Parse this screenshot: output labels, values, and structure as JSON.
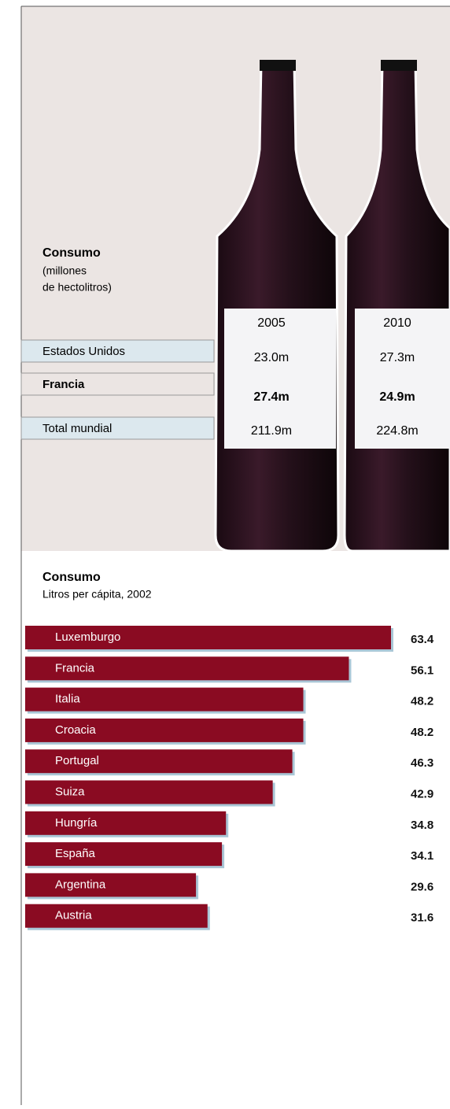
{
  "table": {
    "title": "Consumo",
    "note_lines": [
      "(millones",
      "de hectolitros)"
    ],
    "columns": [
      "2005",
      "2010"
    ],
    "rows": [
      {
        "label": "Estados Unidos",
        "cells": [
          "23.0m",
          "27.3m"
        ]
      },
      {
        "label": "Francia",
        "cells": [
          "27.4m",
          "24.9m"
        ]
      },
      {
        "label": "Total mundial",
        "cells": [
          "211.9m",
          "224.8m"
        ]
      }
    ]
  },
  "chart_data": {
    "type": "bar",
    "orientation": "horizontal",
    "title": "Consumo",
    "subtitle": "Litros per cápita, 2002",
    "categories": [
      "Luxemburgo",
      "Francia",
      "Italia",
      "Croacia",
      "Portugal",
      "Suiza",
      "Hungría",
      "España",
      "Argentina",
      "Austria"
    ],
    "values": [
      63.4,
      56.1,
      48.2,
      48.2,
      46.3,
      42.9,
      34.8,
      34.1,
      29.6,
      31.6
    ],
    "color": "#8a0b22"
  }
}
